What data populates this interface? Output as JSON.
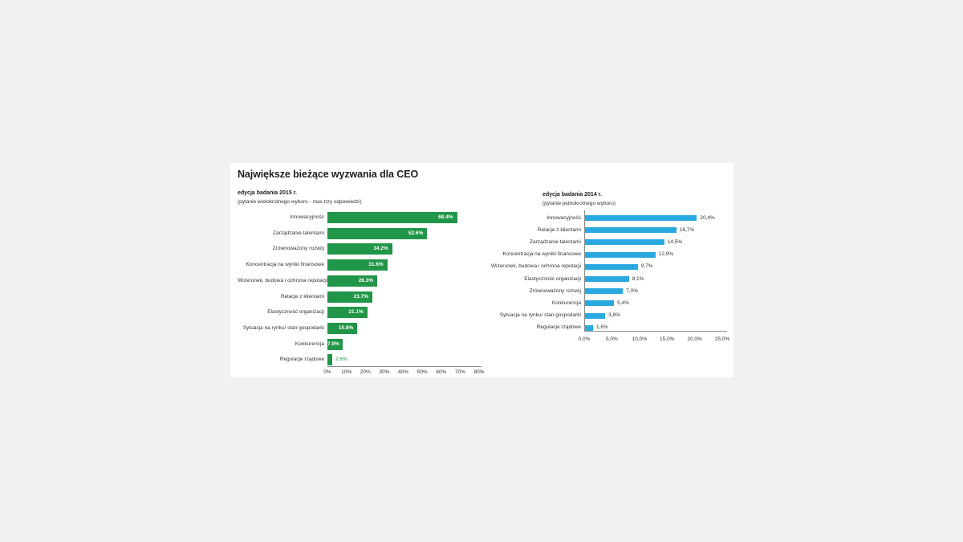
{
  "title": "Największe bieżące wyzwania dla CEO",
  "colors": {
    "green_2015": "#219648",
    "blue_2014": "#29a9e0",
    "axis": "#8c8c8c",
    "text": "#333333",
    "title_text": "#1d1d1d",
    "page_background": "#f1f1f1",
    "card_background": "#ffffff"
  },
  "chart_data": [
    {
      "type": "bar",
      "orientation": "horizontal",
      "title": "edycja badania 2015 r.",
      "subtitle": "(pytanie wielokrotnego wyboru - max trzy odpowiedzi)",
      "bar_color": "#219648",
      "value_label_position": "inside-end, outside when bar too short",
      "categories": [
        "Innowacyjność",
        "Zarządzanie talentami",
        "Zrównoważony rozwój",
        "Koncentracja na wyniki finansowe",
        "Wizerunek, budowa i ochrona reputacji",
        "Relacje z klientami",
        "Elastyczność organizacji",
        "Sytuacja na rynku/ stan gospodarki",
        "Konkurencja",
        "Regulacje rządowe"
      ],
      "values": [
        68.4,
        52.6,
        34.2,
        31.6,
        26.3,
        23.7,
        21.1,
        15.8,
        7.9,
        2.6
      ],
      "labels": [
        "68.4%",
        "52.6%",
        "34.2%",
        "31.6%",
        "26.3%",
        "23.7%",
        "21.1%",
        "15.8%",
        "7.9%",
        "2.6%"
      ],
      "xlim": [
        0,
        80
      ],
      "ticks": [
        "0%",
        "10%",
        "20%",
        "30%",
        "40%",
        "50%",
        "60%",
        "70%",
        "80%"
      ],
      "grid": false,
      "legend": "none"
    },
    {
      "type": "bar",
      "orientation": "horizontal",
      "title": "edycja badania 2014 r.",
      "subtitle": "(pytanie jednokrotnego wyboru)",
      "bar_color": "#29a9e0",
      "value_label_position": "outside-end",
      "categories": [
        "Innowacyjność",
        "Relacje z klientami",
        "Zarządzanie talentami",
        "Koncentracja na wyniki finansowe",
        "Wizerunek, budowa i ochrona reputacji",
        "Elastyczność organizacji",
        "Zrównoważony rozwój",
        "Konkurencja",
        "Sytuacja na rynku/ stan gospodarki",
        "Regulacje rządowe"
      ],
      "values": [
        20.4,
        16.7,
        14.5,
        12.9,
        9.7,
        8.1,
        7.0,
        5.4,
        3.8,
        1.6
      ],
      "labels": [
        "20,4%",
        "16,7%",
        "14,5%",
        "12,9%",
        "9,7%",
        "8,1%",
        "7,0%",
        "5,4%",
        "3,8%",
        "1,6%"
      ],
      "xlim": [
        0,
        25
      ],
      "ticks": [
        "0,0%",
        "5,0%",
        "10,0%",
        "15,0%",
        "20,0%",
        "25,0%"
      ],
      "grid": false,
      "legend": "none"
    }
  ]
}
